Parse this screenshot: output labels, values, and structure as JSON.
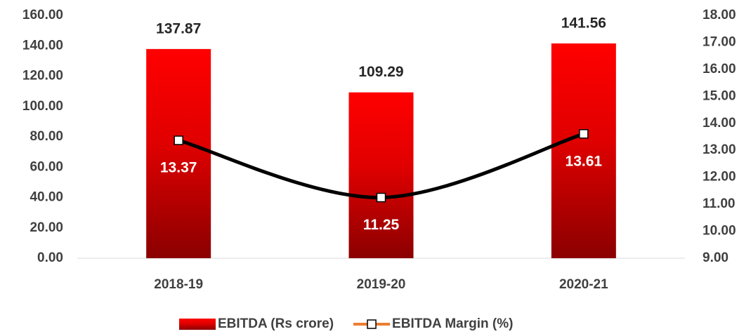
{
  "chart_data": {
    "type": "bar",
    "categories": [
      "2018-19",
      "2019-20",
      "2020-21"
    ],
    "series": [
      {
        "name": "EBITDA (Rs crore)",
        "type": "bar",
        "color": "#ff0000",
        "values": [
          137.87,
          109.29,
          141.56
        ]
      },
      {
        "name": "EBITDA Margin (%)",
        "type": "line",
        "axis": "y2",
        "color": "#000000",
        "legend_color": "#ed7d31",
        "values": [
          13.37,
          11.25,
          13.61
        ]
      }
    ],
    "ylim": [
      0,
      160
    ],
    "yticks": [
      {
        "value": 0,
        "label": "0.00"
      },
      {
        "value": 20,
        "label": "20.00"
      },
      {
        "value": 40,
        "label": "40.00"
      },
      {
        "value": 60,
        "label": "60.00"
      },
      {
        "value": 80,
        "label": "80.00"
      },
      {
        "value": 100,
        "label": "100.00"
      },
      {
        "value": 120,
        "label": "120.00"
      },
      {
        "value": 140,
        "label": "140.00"
      },
      {
        "value": 160,
        "label": "160.00"
      }
    ],
    "y2lim": [
      9,
      18
    ],
    "y2ticks": [
      {
        "value": 9,
        "label": "9.00"
      },
      {
        "value": 10,
        "label": "10.00"
      },
      {
        "value": 11,
        "label": "11.00"
      },
      {
        "value": 12,
        "label": "12.00"
      },
      {
        "value": 13,
        "label": "13.00"
      },
      {
        "value": 14,
        "label": "14.00"
      },
      {
        "value": 15,
        "label": "15.00"
      },
      {
        "value": 16,
        "label": "16.00"
      },
      {
        "value": 17,
        "label": "17.00"
      },
      {
        "value": 18,
        "label": "18.00"
      }
    ],
    "legend": "bottom"
  }
}
